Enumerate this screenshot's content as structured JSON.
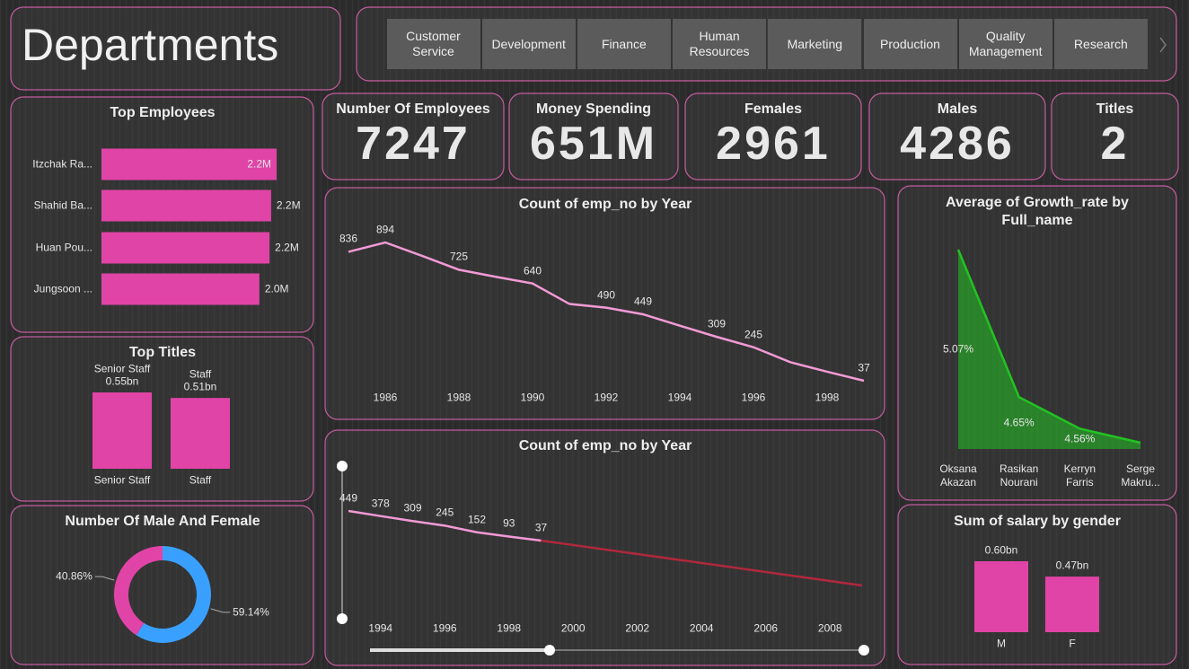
{
  "header": {
    "title": "Departments"
  },
  "nav": {
    "items": [
      "Customer Service",
      "Development",
      "Finance",
      "Human Resources",
      "Marketing",
      "Production",
      "Quality Management",
      "Research"
    ]
  },
  "kpis": [
    {
      "label": "Number Of Employees",
      "value": 7247
    },
    {
      "label": "Money Spending",
      "value": "651M"
    },
    {
      "label": "Females",
      "value": 2961
    },
    {
      "label": "Males",
      "value": 4286
    },
    {
      "label": "Titles",
      "value": 2
    }
  ],
  "chart_data": [
    {
      "type": "hbar",
      "title": "Top Employees",
      "categories": [
        "Itzchak Ra...",
        "Shahid Ba...",
        "Huan Pou...",
        "Jungsoon ..."
      ],
      "values": [
        2.24,
        2.17,
        2.15,
        2.02
      ],
      "value_labels": [
        "2.2M",
        "2.2M",
        "2.2M",
        "2.0M"
      ],
      "color": "#e044a7"
    },
    {
      "type": "bar",
      "title": "Top Titles",
      "categories": [
        "Senior Staff",
        "Staff"
      ],
      "values": [
        0.55,
        0.51
      ],
      "value_labels": [
        "0.55bn",
        "0.51bn"
      ],
      "color": "#e044a7"
    },
    {
      "type": "pie",
      "title": "Number Of Male And Female",
      "values": [
        40.86,
        59.14
      ],
      "value_labels": [
        "40.86%",
        "59.14%"
      ],
      "colors": [
        "#e044a7",
        "#3aa0ff"
      ]
    },
    {
      "type": "line",
      "title": "Count of emp_no by Year",
      "x": [
        1985,
        1986,
        1987,
        1988,
        1989,
        1990,
        1991,
        1992,
        1993,
        1994,
        1995,
        1996,
        1997,
        1998,
        1999
      ],
      "values": [
        836,
        894,
        811,
        725,
        681,
        640,
        513,
        490,
        449,
        378,
        309,
        245,
        152,
        93,
        37
      ],
      "value_labels": [
        "836",
        "894",
        null,
        "725",
        null,
        "640",
        null,
        "490",
        "449",
        null,
        "309",
        "245",
        null,
        null,
        "37"
      ],
      "color": "#f29ad6",
      "xlim": [
        1985,
        1999
      ],
      "xticks": [
        1986,
        1988,
        1990,
        1992,
        1994,
        1996,
        1998
      ]
    },
    {
      "type": "line",
      "title": "Count of emp_no by Year",
      "series": [
        {
          "color": "#f29ad6",
          "x": [
            1993,
            1994,
            1995,
            1996,
            1997,
            1998,
            1999
          ],
          "values": [
            449,
            378,
            309,
            245,
            152,
            93,
            37
          ],
          "value_labels": [
            "449",
            "378",
            "309",
            "245",
            "152",
            "93",
            "37"
          ]
        },
        {
          "color": "#b0283c",
          "x": [
            1999,
            2009
          ],
          "values": [
            37,
            -588
          ]
        }
      ],
      "xlim": [
        1993,
        2009
      ],
      "xticks": [
        1994,
        1996,
        1998,
        2000,
        2002,
        2004,
        2006,
        2008
      ]
    },
    {
      "type": "area",
      "title": "Average of Growth_rate by Full_name",
      "categories": [
        "Oksana Akazan",
        "Rasikan Nourani",
        "Kerryn Farris",
        "Serge Makru..."
      ],
      "values": [
        5.07,
        4.65,
        4.56,
        4.52
      ],
      "value_labels": [
        "5.07%",
        "4.65%",
        "4.56%",
        null
      ],
      "color": "#22c322"
    },
    {
      "type": "bar",
      "title": "Sum of salary by gender",
      "categories": [
        "M",
        "F"
      ],
      "values": [
        0.6,
        0.47
      ],
      "value_labels": [
        "0.60bn",
        "0.47bn"
      ],
      "color": "#e044a7"
    }
  ]
}
